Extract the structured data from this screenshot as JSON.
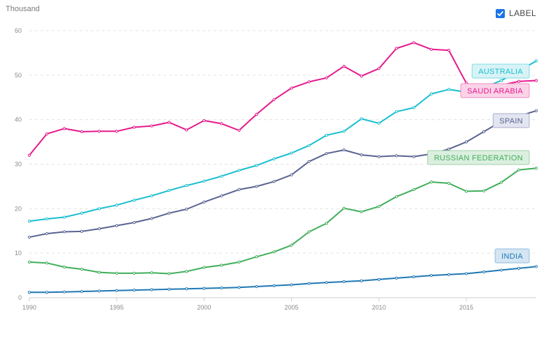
{
  "unit_label": "Thousand",
  "toggle": {
    "label": "LABEL",
    "checked": true
  },
  "chart_data": {
    "type": "line",
    "xlabel": "",
    "ylabel": "",
    "ylim": [
      0,
      60
    ],
    "xlim": [
      1990,
      2019
    ],
    "y_ticks": [
      0,
      10,
      20,
      30,
      40,
      50,
      60
    ],
    "x_ticks": [
      1990,
      1995,
      2000,
      2005,
      2010,
      2015
    ],
    "grid": true,
    "legend": "inline-right",
    "x": [
      1990,
      1991,
      1992,
      1993,
      1994,
      1995,
      1996,
      1997,
      1998,
      1999,
      2000,
      2001,
      2002,
      2003,
      2004,
      2005,
      2006,
      2007,
      2008,
      2009,
      2010,
      2011,
      2012,
      2013,
      2014,
      2015,
      2016,
      2017,
      2018,
      2019
    ],
    "series": [
      {
        "name": "AUSTRALIA",
        "color": "#17becf",
        "tag_bg": "#d8f3f6",
        "tag_border": "#7fdbe6",
        "values": [
          17.2,
          17.7,
          18.1,
          19.0,
          20.0,
          20.8,
          21.9,
          22.9,
          24.1,
          25.2,
          26.2,
          27.3,
          28.6,
          29.7,
          31.2,
          32.5,
          34.2,
          36.5,
          37.4,
          40.2,
          39.2,
          41.8,
          42.7,
          45.8,
          46.8,
          46.2,
          47.2,
          48.8,
          50.9,
          53.2
        ]
      },
      {
        "name": "SAUDI ARABIA",
        "color": "#e6198c",
        "tag_bg": "#fbd3e8",
        "tag_border": "#ef8cc2",
        "values": [
          32.0,
          36.8,
          38.0,
          37.3,
          37.4,
          37.4,
          38.3,
          38.6,
          39.4,
          37.7,
          39.8,
          39.1,
          37.6,
          41.2,
          44.5,
          47.1,
          48.5,
          49.4,
          52.0,
          49.8,
          51.5,
          56.0,
          57.3,
          55.8,
          55.6,
          48.2,
          46.9,
          47.8,
          48.6,
          48.8
        ]
      },
      {
        "name": "SPAIN",
        "color": "#5a6391",
        "tag_bg": "#e3e5f0",
        "tag_border": "#a9aecb",
        "values": [
          13.6,
          14.4,
          14.8,
          14.9,
          15.5,
          16.2,
          16.9,
          17.8,
          19.0,
          19.9,
          21.5,
          22.9,
          24.3,
          25.0,
          26.1,
          27.6,
          30.6,
          32.4,
          33.2,
          32.1,
          31.7,
          31.9,
          31.7,
          32.3,
          33.4,
          35.0,
          37.3,
          39.6,
          40.8,
          42.0
        ]
      },
      {
        "name": "RUSSIAN FEDERATION",
        "color": "#3fae5a",
        "tag_bg": "#dcefdf",
        "tag_border": "#9fd2a8",
        "values": [
          8.0,
          7.8,
          6.9,
          6.4,
          5.7,
          5.5,
          5.5,
          5.6,
          5.4,
          5.9,
          6.8,
          7.3,
          8.0,
          9.2,
          10.3,
          11.8,
          14.8,
          16.7,
          20.1,
          19.3,
          20.5,
          22.7,
          24.3,
          26.0,
          25.7,
          23.9,
          24.0,
          25.9,
          28.7,
          29.1
        ]
      },
      {
        "name": "INDIA",
        "color": "#1f77b4",
        "tag_bg": "#d4e6f3",
        "tag_border": "#8fbde0",
        "values": [
          1.2,
          1.2,
          1.3,
          1.4,
          1.5,
          1.6,
          1.7,
          1.8,
          1.9,
          2.0,
          2.1,
          2.2,
          2.3,
          2.5,
          2.7,
          2.9,
          3.2,
          3.4,
          3.6,
          3.8,
          4.1,
          4.4,
          4.7,
          5.0,
          5.2,
          5.4,
          5.8,
          6.2,
          6.6,
          7.0
        ]
      }
    ]
  }
}
